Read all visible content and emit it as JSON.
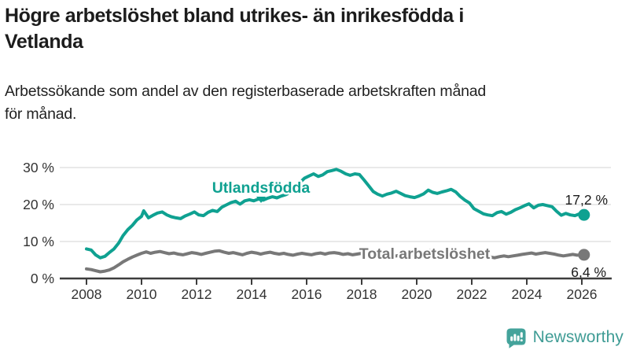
{
  "header": {
    "title_lines": [
      "Högre arbetslöshet bland utrikes- än inrikesfödda i",
      "Vetlanda"
    ],
    "subtitle_lines": [
      "Arbetssökande som andel av den registerbaserade arbetskraften månad",
      "för månad."
    ]
  },
  "branding": {
    "name": "Newsworthy",
    "icon": "speech-bubble-bar-chart-icon",
    "icon_color": "#44a39b",
    "text_color": "#3f9c95"
  },
  "chart_data": {
    "type": "line",
    "title": "Högre arbetslöshet bland utrikes- än inrikesfödda i Vetlanda",
    "subtitle": "Arbetssökande som andel av den registerbaserade arbetskraften månad för månad.",
    "xlabel": "",
    "ylabel": "",
    "x_axis": {
      "tick_years": [
        2008,
        2010,
        2012,
        2014,
        2016,
        2018,
        2020,
        2022,
        2024,
        2026
      ],
      "range": [
        2007.0,
        2027.1
      ]
    },
    "y_axis": {
      "tick_labels": [
        "0 %",
        "10 %",
        "20 %",
        "30 %"
      ],
      "tick_values": [
        0,
        10,
        20,
        30
      ],
      "range": [
        0,
        31
      ],
      "grid": true
    },
    "colors": {
      "grid": "#e2e2e2",
      "axis": "#3d3d3d",
      "tick_text": "#333333"
    },
    "legend_position": "inline-labels",
    "series": [
      {
        "name": "Utlandsfödda",
        "color": "#0fa191",
        "end_label": "17,2 %",
        "end_value": 17.2,
        "points": [
          [
            2008.0,
            8.0
          ],
          [
            2008.17,
            7.7
          ],
          [
            2008.33,
            6.4
          ],
          [
            2008.5,
            5.6
          ],
          [
            2008.67,
            6.0
          ],
          [
            2008.83,
            7.0
          ],
          [
            2009.0,
            8.0
          ],
          [
            2009.17,
            9.6
          ],
          [
            2009.33,
            11.6
          ],
          [
            2009.5,
            13.2
          ],
          [
            2009.67,
            14.4
          ],
          [
            2009.83,
            15.8
          ],
          [
            2010.0,
            16.8
          ],
          [
            2010.08,
            18.3
          ],
          [
            2010.25,
            16.4
          ],
          [
            2010.42,
            17.1
          ],
          [
            2010.58,
            17.7
          ],
          [
            2010.75,
            18.0
          ],
          [
            2010.92,
            17.2
          ],
          [
            2011.08,
            16.7
          ],
          [
            2011.25,
            16.4
          ],
          [
            2011.42,
            16.2
          ],
          [
            2011.58,
            16.9
          ],
          [
            2011.75,
            17.4
          ],
          [
            2011.92,
            18.0
          ],
          [
            2012.08,
            17.2
          ],
          [
            2012.25,
            17.0
          ],
          [
            2012.42,
            17.9
          ],
          [
            2012.58,
            18.4
          ],
          [
            2012.75,
            18.1
          ],
          [
            2012.92,
            19.3
          ],
          [
            2013.08,
            19.9
          ],
          [
            2013.25,
            20.5
          ],
          [
            2013.42,
            20.9
          ],
          [
            2013.58,
            20.1
          ],
          [
            2013.75,
            21.0
          ],
          [
            2013.92,
            21.3
          ],
          [
            2014.08,
            21.0
          ],
          [
            2014.25,
            21.5
          ],
          [
            2014.42,
            21.2
          ],
          [
            2014.58,
            21.7
          ],
          [
            2014.75,
            22.1
          ],
          [
            2014.92,
            21.8
          ],
          [
            2015.08,
            22.3
          ],
          [
            2015.25,
            22.7
          ],
          [
            2015.42,
            23.3
          ],
          [
            2015.58,
            24.6
          ],
          [
            2015.75,
            25.9
          ],
          [
            2015.92,
            27.1
          ],
          [
            2016.08,
            27.7
          ],
          [
            2016.25,
            28.3
          ],
          [
            2016.42,
            27.6
          ],
          [
            2016.58,
            28.0
          ],
          [
            2016.75,
            28.9
          ],
          [
            2016.92,
            29.2
          ],
          [
            2017.08,
            29.5
          ],
          [
            2017.25,
            29.0
          ],
          [
            2017.42,
            28.3
          ],
          [
            2017.58,
            27.9
          ],
          [
            2017.75,
            28.3
          ],
          [
            2017.92,
            28.1
          ],
          [
            2018.08,
            26.7
          ],
          [
            2018.25,
            25.1
          ],
          [
            2018.42,
            23.5
          ],
          [
            2018.58,
            22.8
          ],
          [
            2018.75,
            22.3
          ],
          [
            2018.92,
            22.8
          ],
          [
            2019.08,
            23.1
          ],
          [
            2019.25,
            23.6
          ],
          [
            2019.42,
            23.0
          ],
          [
            2019.58,
            22.4
          ],
          [
            2019.75,
            22.1
          ],
          [
            2019.92,
            21.9
          ],
          [
            2020.08,
            22.3
          ],
          [
            2020.25,
            22.9
          ],
          [
            2020.42,
            23.9
          ],
          [
            2020.58,
            23.3
          ],
          [
            2020.75,
            23.0
          ],
          [
            2020.92,
            23.4
          ],
          [
            2021.08,
            23.7
          ],
          [
            2021.25,
            24.1
          ],
          [
            2021.42,
            23.4
          ],
          [
            2021.58,
            22.2
          ],
          [
            2021.75,
            21.2
          ],
          [
            2021.92,
            20.4
          ],
          [
            2022.08,
            18.9
          ],
          [
            2022.25,
            18.2
          ],
          [
            2022.42,
            17.5
          ],
          [
            2022.58,
            17.2
          ],
          [
            2022.75,
            17.0
          ],
          [
            2022.92,
            17.8
          ],
          [
            2023.08,
            18.1
          ],
          [
            2023.25,
            17.4
          ],
          [
            2023.42,
            17.9
          ],
          [
            2023.58,
            18.6
          ],
          [
            2023.75,
            19.1
          ],
          [
            2023.92,
            19.7
          ],
          [
            2024.08,
            20.2
          ],
          [
            2024.25,
            19.1
          ],
          [
            2024.42,
            19.8
          ],
          [
            2024.58,
            20.0
          ],
          [
            2024.75,
            19.7
          ],
          [
            2024.92,
            19.4
          ],
          [
            2025.08,
            18.2
          ],
          [
            2025.25,
            17.1
          ],
          [
            2025.42,
            17.6
          ],
          [
            2025.58,
            17.2
          ],
          [
            2025.75,
            17.0
          ],
          [
            2025.92,
            17.5
          ],
          [
            2026.08,
            17.2
          ]
        ]
      },
      {
        "name": "Total arbetslöshet",
        "color": "#787878",
        "end_label": "6,4 %",
        "end_value": 6.4,
        "points": [
          [
            2008.0,
            2.6
          ],
          [
            2008.17,
            2.4
          ],
          [
            2008.33,
            2.1
          ],
          [
            2008.5,
            1.8
          ],
          [
            2008.67,
            2.0
          ],
          [
            2008.83,
            2.3
          ],
          [
            2009.0,
            2.9
          ],
          [
            2009.17,
            3.7
          ],
          [
            2009.33,
            4.5
          ],
          [
            2009.5,
            5.2
          ],
          [
            2009.67,
            5.8
          ],
          [
            2009.83,
            6.3
          ],
          [
            2010.0,
            6.8
          ],
          [
            2010.17,
            7.2
          ],
          [
            2010.33,
            6.8
          ],
          [
            2010.5,
            7.1
          ],
          [
            2010.67,
            7.3
          ],
          [
            2010.83,
            7.0
          ],
          [
            2011.0,
            6.7
          ],
          [
            2011.17,
            6.9
          ],
          [
            2011.33,
            6.6
          ],
          [
            2011.5,
            6.4
          ],
          [
            2011.67,
            6.7
          ],
          [
            2011.83,
            7.0
          ],
          [
            2012.0,
            6.8
          ],
          [
            2012.17,
            6.5
          ],
          [
            2012.33,
            6.8
          ],
          [
            2012.5,
            7.1
          ],
          [
            2012.67,
            7.4
          ],
          [
            2012.83,
            7.5
          ],
          [
            2013.0,
            7.1
          ],
          [
            2013.17,
            6.8
          ],
          [
            2013.33,
            7.0
          ],
          [
            2013.5,
            6.7
          ],
          [
            2013.67,
            6.4
          ],
          [
            2013.83,
            6.8
          ],
          [
            2014.0,
            7.1
          ],
          [
            2014.17,
            6.9
          ],
          [
            2014.33,
            6.6
          ],
          [
            2014.5,
            6.9
          ],
          [
            2014.67,
            7.1
          ],
          [
            2014.83,
            6.8
          ],
          [
            2015.0,
            6.6
          ],
          [
            2015.17,
            6.8
          ],
          [
            2015.33,
            6.5
          ],
          [
            2015.5,
            6.3
          ],
          [
            2015.67,
            6.6
          ],
          [
            2015.83,
            6.8
          ],
          [
            2016.0,
            6.6
          ],
          [
            2016.17,
            6.4
          ],
          [
            2016.33,
            6.7
          ],
          [
            2016.5,
            6.9
          ],
          [
            2016.67,
            6.6
          ],
          [
            2016.83,
            6.9
          ],
          [
            2017.0,
            7.0
          ],
          [
            2017.17,
            6.8
          ],
          [
            2017.33,
            6.5
          ],
          [
            2017.5,
            6.7
          ],
          [
            2017.67,
            6.4
          ],
          [
            2017.83,
            6.6
          ],
          [
            2018.0,
            6.8
          ],
          [
            2018.17,
            6.5
          ],
          [
            2018.33,
            6.2
          ],
          [
            2018.5,
            6.0
          ],
          [
            2018.67,
            6.2
          ],
          [
            2018.83,
            6.4
          ],
          [
            2019.0,
            6.2
          ],
          [
            2019.17,
            6.0
          ],
          [
            2019.33,
            6.2
          ],
          [
            2019.5,
            6.4
          ],
          [
            2019.67,
            6.2
          ],
          [
            2019.83,
            6.4
          ],
          [
            2020.0,
            6.6
          ],
          [
            2020.17,
            6.9
          ],
          [
            2020.33,
            7.3
          ],
          [
            2020.5,
            7.6
          ],
          [
            2020.67,
            7.3
          ],
          [
            2020.83,
            7.1
          ],
          [
            2021.0,
            7.3
          ],
          [
            2021.17,
            7.5
          ],
          [
            2021.33,
            7.2
          ],
          [
            2021.5,
            6.9
          ],
          [
            2021.67,
            6.6
          ],
          [
            2021.83,
            6.4
          ],
          [
            2022.0,
            6.2
          ],
          [
            2022.17,
            6.0
          ],
          [
            2022.33,
            5.8
          ],
          [
            2022.5,
            5.6
          ],
          [
            2022.67,
            5.8
          ],
          [
            2022.83,
            5.6
          ],
          [
            2023.0,
            5.9
          ],
          [
            2023.17,
            6.1
          ],
          [
            2023.33,
            5.9
          ],
          [
            2023.5,
            6.1
          ],
          [
            2023.67,
            6.3
          ],
          [
            2023.83,
            6.5
          ],
          [
            2024.0,
            6.7
          ],
          [
            2024.17,
            6.9
          ],
          [
            2024.33,
            6.6
          ],
          [
            2024.5,
            6.8
          ],
          [
            2024.67,
            7.0
          ],
          [
            2024.83,
            6.8
          ],
          [
            2025.0,
            6.6
          ],
          [
            2025.17,
            6.3
          ],
          [
            2025.33,
            6.1
          ],
          [
            2025.5,
            6.3
          ],
          [
            2025.67,
            6.5
          ],
          [
            2025.83,
            6.3
          ],
          [
            2026.08,
            6.4
          ]
        ]
      }
    ]
  }
}
